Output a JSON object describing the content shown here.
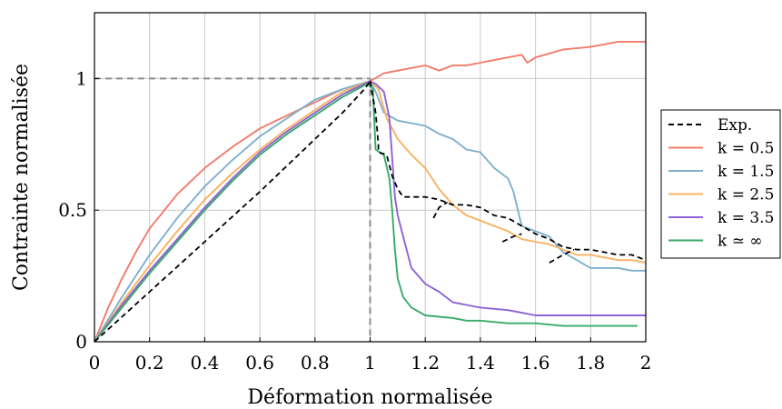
{
  "chart_data": {
    "type": "line",
    "xlabel": "Déformation normalisée",
    "ylabel": "Contrainte normalisée",
    "xlim": [
      0,
      2
    ],
    "ylim": [
      0,
      1.25
    ],
    "xticks": [
      "0",
      "0.2",
      "0.4",
      "0.6",
      "0.8",
      "1",
      "1.2",
      "1.4",
      "1.6",
      "1.8",
      "2"
    ],
    "yticks": [
      "0",
      "0.5",
      "1"
    ],
    "xtick_values": [
      0,
      0.2,
      0.4,
      0.6,
      0.8,
      1,
      1.2,
      1.4,
      1.6,
      1.8,
      2
    ],
    "ytick_values": [
      0,
      0.5,
      1
    ],
    "grid": true,
    "legend_position": "right",
    "reference_lines": {
      "x": 1,
      "y": 1,
      "style": "dashed",
      "color": "#8c8c8c"
    },
    "series": [
      {
        "name": "Exp.",
        "color": "#000000",
        "dashed": true,
        "segments": [
          [
            [
              0,
              0
            ],
            [
              0.2,
              0.19
            ],
            [
              0.4,
              0.38
            ],
            [
              0.6,
              0.57
            ],
            [
              0.8,
              0.77
            ],
            [
              0.9,
              0.87
            ],
            [
              0.98,
              0.96
            ],
            [
              1.0,
              0.99
            ]
          ],
          [
            [
              1.0,
              0.99
            ],
            [
              1.02,
              0.87
            ],
            [
              1.03,
              0.75
            ],
            [
              1.03,
              0.72
            ],
            [
              1.06,
              0.71
            ],
            [
              1.08,
              0.63
            ],
            [
              1.1,
              0.58
            ],
            [
              1.12,
              0.55
            ],
            [
              1.2,
              0.55
            ],
            [
              1.25,
              0.54
            ],
            [
              1.3,
              0.52
            ],
            [
              1.35,
              0.52
            ],
            [
              1.4,
              0.51
            ],
            [
              1.45,
              0.48
            ],
            [
              1.5,
              0.47
            ],
            [
              1.55,
              0.44
            ],
            [
              1.6,
              0.41
            ],
            [
              1.65,
              0.39
            ],
            [
              1.7,
              0.36
            ],
            [
              1.75,
              0.35
            ],
            [
              1.8,
              0.35
            ],
            [
              1.85,
              0.34
            ],
            [
              1.9,
              0.33
            ],
            [
              1.95,
              0.33
            ],
            [
              2.0,
              0.31
            ]
          ],
          [
            [
              1.23,
              0.47
            ],
            [
              1.25,
              0.51
            ],
            [
              1.28,
              0.53
            ]
          ],
          [
            [
              1.48,
              0.38
            ],
            [
              1.52,
              0.4
            ],
            [
              1.55,
              0.41
            ]
          ],
          [
            [
              1.65,
              0.3
            ],
            [
              1.7,
              0.33
            ],
            [
              1.74,
              0.35
            ]
          ]
        ]
      },
      {
        "name": "k = 0.5",
        "color": "#f07c6c",
        "segments": [
          [
            [
              0,
              0
            ],
            [
              0.05,
              0.13
            ],
            [
              0.1,
              0.24
            ],
            [
              0.15,
              0.34
            ],
            [
              0.2,
              0.43
            ],
            [
              0.3,
              0.56
            ],
            [
              0.4,
              0.66
            ],
            [
              0.5,
              0.74
            ],
            [
              0.6,
              0.81
            ],
            [
              0.7,
              0.86
            ],
            [
              0.8,
              0.91
            ],
            [
              0.9,
              0.96
            ],
            [
              1.0,
              0.99
            ],
            [
              1.05,
              1.02
            ],
            [
              1.1,
              1.03
            ],
            [
              1.15,
              1.04
            ],
            [
              1.2,
              1.05
            ],
            [
              1.25,
              1.03
            ],
            [
              1.3,
              1.05
            ],
            [
              1.35,
              1.05
            ],
            [
              1.4,
              1.06
            ],
            [
              1.45,
              1.07
            ],
            [
              1.5,
              1.08
            ],
            [
              1.55,
              1.09
            ],
            [
              1.57,
              1.06
            ],
            [
              1.6,
              1.08
            ],
            [
              1.7,
              1.11
            ],
            [
              1.8,
              1.12
            ],
            [
              1.85,
              1.13
            ],
            [
              1.9,
              1.14
            ],
            [
              2.0,
              1.14
            ]
          ]
        ]
      },
      {
        "name": "k = 1.5",
        "color": "#7fb0cf",
        "segments": [
          [
            [
              0,
              0
            ],
            [
              0.1,
              0.17
            ],
            [
              0.2,
              0.33
            ],
            [
              0.3,
              0.47
            ],
            [
              0.4,
              0.59
            ],
            [
              0.5,
              0.69
            ],
            [
              0.6,
              0.78
            ],
            [
              0.7,
              0.85
            ],
            [
              0.8,
              0.92
            ],
            [
              0.9,
              0.96
            ],
            [
              1.0,
              0.99
            ],
            [
              1.02,
              0.95
            ],
            [
              1.05,
              0.87
            ],
            [
              1.1,
              0.84
            ],
            [
              1.15,
              0.83
            ],
            [
              1.2,
              0.82
            ],
            [
              1.25,
              0.79
            ],
            [
              1.3,
              0.77
            ],
            [
              1.35,
              0.73
            ],
            [
              1.4,
              0.72
            ],
            [
              1.45,
              0.66
            ],
            [
              1.5,
              0.62
            ],
            [
              1.52,
              0.57
            ],
            [
              1.55,
              0.44
            ],
            [
              1.6,
              0.42
            ],
            [
              1.65,
              0.4
            ],
            [
              1.7,
              0.34
            ],
            [
              1.75,
              0.31
            ],
            [
              1.8,
              0.28
            ],
            [
              1.85,
              0.28
            ],
            [
              1.9,
              0.28
            ],
            [
              1.95,
              0.27
            ],
            [
              2.0,
              0.27
            ]
          ]
        ]
      },
      {
        "name": "k = 2.5",
        "color": "#f9b262",
        "segments": [
          [
            [
              0,
              0
            ],
            [
              0.1,
              0.15
            ],
            [
              0.2,
              0.29
            ],
            [
              0.3,
              0.42
            ],
            [
              0.4,
              0.54
            ],
            [
              0.5,
              0.64
            ],
            [
              0.6,
              0.73
            ],
            [
              0.7,
              0.81
            ],
            [
              0.8,
              0.88
            ],
            [
              0.9,
              0.95
            ],
            [
              1.0,
              0.99
            ],
            [
              1.03,
              0.96
            ],
            [
              1.06,
              0.85
            ],
            [
              1.1,
              0.77
            ],
            [
              1.15,
              0.71
            ],
            [
              1.2,
              0.66
            ],
            [
              1.25,
              0.58
            ],
            [
              1.3,
              0.52
            ],
            [
              1.35,
              0.48
            ],
            [
              1.4,
              0.46
            ],
            [
              1.45,
              0.44
            ],
            [
              1.5,
              0.42
            ],
            [
              1.55,
              0.39
            ],
            [
              1.6,
              0.38
            ],
            [
              1.65,
              0.37
            ],
            [
              1.7,
              0.35
            ],
            [
              1.75,
              0.33
            ],
            [
              1.8,
              0.33
            ],
            [
              1.85,
              0.32
            ],
            [
              1.9,
              0.31
            ],
            [
              1.95,
              0.31
            ],
            [
              2.0,
              0.3
            ]
          ]
        ]
      },
      {
        "name": "k = 3.5",
        "color": "#8e63d6",
        "segments": [
          [
            [
              0,
              0
            ],
            [
              0.1,
              0.14
            ],
            [
              0.2,
              0.27
            ],
            [
              0.3,
              0.39
            ],
            [
              0.4,
              0.51
            ],
            [
              0.5,
              0.62
            ],
            [
              0.6,
              0.72
            ],
            [
              0.7,
              0.8
            ],
            [
              0.8,
              0.87
            ],
            [
              0.9,
              0.94
            ],
            [
              1.0,
              0.99
            ],
            [
              1.02,
              0.98
            ],
            [
              1.05,
              0.95
            ],
            [
              1.07,
              0.85
            ],
            [
              1.08,
              0.7
            ],
            [
              1.09,
              0.55
            ],
            [
              1.1,
              0.48
            ],
            [
              1.12,
              0.4
            ],
            [
              1.15,
              0.28
            ],
            [
              1.2,
              0.22
            ],
            [
              1.25,
              0.19
            ],
            [
              1.3,
              0.15
            ],
            [
              1.35,
              0.14
            ],
            [
              1.4,
              0.13
            ],
            [
              1.5,
              0.12
            ],
            [
              1.55,
              0.11
            ],
            [
              1.6,
              0.1
            ],
            [
              1.7,
              0.1
            ],
            [
              1.8,
              0.1
            ],
            [
              1.9,
              0.1
            ],
            [
              2.0,
              0.1
            ]
          ]
        ]
      },
      {
        "name": "k ≃ ∞",
        "color": "#3aaa6a",
        "segments": [
          [
            [
              0,
              0
            ],
            [
              0.1,
              0.13
            ],
            [
              0.2,
              0.26
            ],
            [
              0.3,
              0.38
            ],
            [
              0.4,
              0.5
            ],
            [
              0.5,
              0.61
            ],
            [
              0.6,
              0.71
            ],
            [
              0.7,
              0.79
            ],
            [
              0.8,
              0.86
            ],
            [
              0.9,
              0.93
            ],
            [
              0.99,
              0.98
            ],
            [
              1.01,
              0.96
            ],
            [
              1.02,
              0.73
            ],
            [
              1.05,
              0.71
            ],
            [
              1.07,
              0.62
            ],
            [
              1.08,
              0.5
            ],
            [
              1.09,
              0.35
            ],
            [
              1.1,
              0.24
            ],
            [
              1.12,
              0.17
            ],
            [
              1.15,
              0.13
            ],
            [
              1.2,
              0.1
            ],
            [
              1.3,
              0.09
            ],
            [
              1.35,
              0.08
            ],
            [
              1.4,
              0.08
            ],
            [
              1.5,
              0.07
            ],
            [
              1.6,
              0.07
            ],
            [
              1.7,
              0.06
            ],
            [
              1.8,
              0.06
            ],
            [
              1.9,
              0.06
            ],
            [
              1.97,
              0.06
            ]
          ]
        ]
      }
    ]
  }
}
